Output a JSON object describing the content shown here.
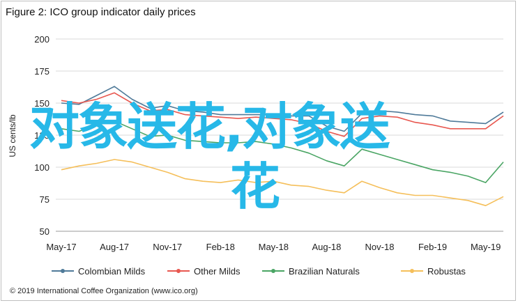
{
  "title": "Figure 2: ICO group indicator daily prices",
  "source": "© 2019 International Coffee Organization (www.ico.org)",
  "overlay": {
    "line1": "对象送花,对象送",
    "line2": "花"
  },
  "chart_data": {
    "type": "line",
    "title": "Figure 2: ICO group indicator daily prices",
    "xlabel": "",
    "ylabel": "US cents/lb",
    "ylim": [
      50,
      200
    ],
    "yticks": [
      50,
      75,
      100,
      125,
      150,
      175,
      200
    ],
    "grid": true,
    "legend_position": "bottom",
    "x_tick_labels": [
      "May-17",
      "Aug-17",
      "Nov-17",
      "Feb-18",
      "May-18",
      "Aug-18",
      "Nov-18",
      "Feb-19",
      "May-19"
    ],
    "x": [
      "2017-05",
      "2017-06",
      "2017-07",
      "2017-08",
      "2017-09",
      "2017-10",
      "2017-11",
      "2017-12",
      "2018-01",
      "2018-02",
      "2018-03",
      "2018-04",
      "2018-05",
      "2018-06",
      "2018-07",
      "2018-08",
      "2018-09",
      "2018-10",
      "2018-11",
      "2018-12",
      "2019-01",
      "2019-02",
      "2019-03",
      "2019-04",
      "2019-05",
      "2019-06"
    ],
    "series": [
      {
        "name": "Colombian Milds",
        "color": "#4f7a99",
        "values": [
          150,
          149,
          156,
          163,
          153,
          146,
          148,
          144,
          143,
          141,
          141,
          141,
          141,
          140,
          140,
          132,
          128,
          142,
          144,
          143,
          141,
          140,
          136,
          135,
          134,
          143
        ]
      },
      {
        "name": "Other Milds",
        "color": "#e8574f",
        "values": [
          152,
          150,
          153,
          158,
          150,
          144,
          145,
          141,
          140,
          139,
          138,
          139,
          138,
          137,
          134,
          128,
          124,
          138,
          140,
          139,
          135,
          133,
          130,
          130,
          130,
          140
        ]
      },
      {
        "name": "Brazilian Naturals",
        "color": "#4aa564",
        "values": [
          130,
          128,
          133,
          136,
          130,
          124,
          125,
          121,
          120,
          119,
          119,
          120,
          118,
          115,
          111,
          105,
          101,
          114,
          110,
          106,
          102,
          98,
          96,
          93,
          88,
          104
        ]
      },
      {
        "name": "Robustas",
        "color": "#f5bf5a",
        "values": [
          98,
          101,
          103,
          106,
          104,
          100,
          96,
          91,
          89,
          88,
          90,
          88,
          89,
          86,
          85,
          82,
          80,
          89,
          84,
          80,
          78,
          78,
          76,
          74,
          70,
          77
        ]
      }
    ]
  }
}
